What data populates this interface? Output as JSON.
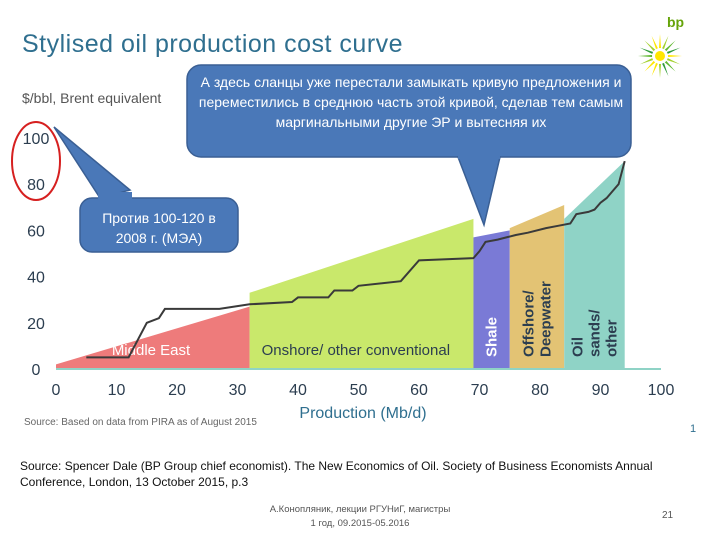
{
  "header": {
    "title": "Stylised oil production cost curve",
    "unit_label": "$/bbl, Brent equivalent",
    "logo_text": "bp"
  },
  "callouts": {
    "main": "А здесь сланцы уже перестали замыкать кривую предложения и переместились в среднюю часть этой кривой, сделав тем самым маргинальными другие ЭР и вытесняя их",
    "left": "Против 100-120 в 2008 г. (МЭА)"
  },
  "chart_source": "Source: Based on data from PIRA as of August 2015",
  "slide_number_small": "1",
  "footnote": "Source: Spencer Dale (BP Group chief economist). The New Economics of Oil. Society of Business Economists Annual Conference, London, 13 October 2015, p.3",
  "author": {
    "line1": "А.Конопляник, лекции РГУНиГ, магистры",
    "line2": "1 год, 09.2015-05.2016"
  },
  "page_number": "21",
  "colors": {
    "middle_east": "#ee7b7b",
    "onshore": "#c9e86b",
    "shale": "#7a7ad6",
    "offshore": "#e3c374",
    "oil_sands": "#8fd3c6",
    "callout": "#4a78b8",
    "curve": "#3a3a3a",
    "axis_text": "#2f6f8f"
  },
  "chart_data": {
    "type": "area",
    "title": "Stylised oil production cost curve",
    "xlabel": "Production (Mb/d)",
    "ylabel": "$/bbl, Brent equivalent",
    "xlim": [
      0,
      100
    ],
    "ylim": [
      0,
      100
    ],
    "x_ticks": [
      0,
      10,
      20,
      30,
      40,
      50,
      60,
      70,
      80,
      90,
      100
    ],
    "y_ticks": [
      0,
      20,
      40,
      60,
      80,
      100
    ],
    "regions": [
      {
        "name": "Middle East",
        "x_start": 0,
        "x_end": 32,
        "y_start": 2,
        "y_end": 27,
        "label_rotated": false
      },
      {
        "name": "Onshore/ other conventional",
        "x_start": 32,
        "x_end": 69,
        "y_start": 33,
        "y_end": 65,
        "label_rotated": false
      },
      {
        "name": "Shale",
        "x_start": 69,
        "x_end": 75,
        "y_start": 57,
        "y_end": 60,
        "label_rotated": true
      },
      {
        "name": "Offshore/ Deepwater",
        "x_start": 75,
        "x_end": 84,
        "y_start": 61,
        "y_end": 71,
        "label_rotated": true
      },
      {
        "name": "Oil sands/ other",
        "x_start": 84,
        "x_end": 94,
        "y_start": 65,
        "y_end": 90,
        "label_rotated": true
      }
    ],
    "cost_curve": {
      "x": [
        5,
        12,
        15,
        17,
        18,
        27,
        32,
        39,
        40,
        45,
        46,
        49,
        50,
        57,
        60,
        69,
        70,
        71,
        73,
        76,
        78,
        81,
        83,
        85,
        86,
        88,
        89,
        90,
        91,
        92,
        93,
        94
      ],
      "y": [
        5,
        5,
        20,
        22,
        26,
        26,
        28,
        29,
        31,
        31,
        34,
        34,
        36,
        38,
        47,
        48,
        51,
        55,
        56,
        58,
        59,
        61,
        62,
        63,
        67,
        68,
        69,
        72,
        74,
        77,
        80,
        90
      ]
    },
    "annotations": [
      {
        "text": "Против 100-120 в 2008 г. (МЭА)",
        "target": "y=100 tick"
      },
      {
        "text": "А здесь сланцы уже перестали замыкать кривую предложения и переместились в среднюю часть этой кривой, сделав тем самым маргинальными другие ЭР и вытесняя их",
        "target": "Shale"
      }
    ],
    "source": "Source: Based on data from PIRA as of August 2015"
  }
}
